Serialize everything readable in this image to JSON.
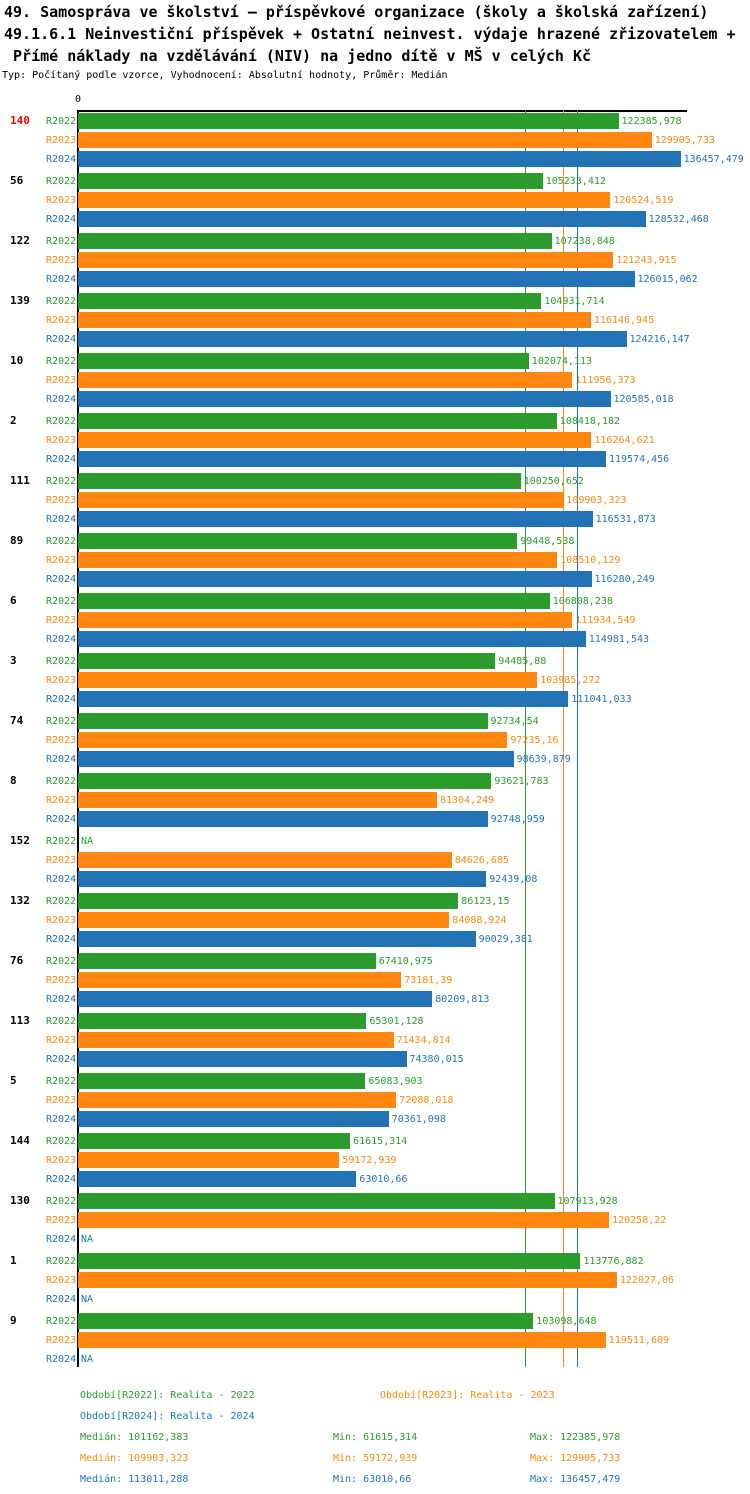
{
  "title": {
    "line1": "49. Samospráva ve školství – příspěvkové organizace (školy a školská zařízení)",
    "line2": "49.1.6.1 Neinvestiční příspěvek + Ostatní neinvest. výdaje hrazené zřizovatelem +",
    "line3": " Přímé náklady na vzdělávání (NIV) na jedno dítě v MŠ v celých Kč",
    "type_line": "Typ: Počítaný podle vzorce, Vyhodnocení: Absolutní hodnoty, Průměr: Medián"
  },
  "colors": {
    "r2022": "#2b9b2b",
    "r2023": "#ff870f",
    "r2024": "#2273b6",
    "highlight": "#ff0000",
    "axis": "#000000"
  },
  "chart_data": {
    "type": "bar",
    "orientation": "horizontal",
    "unit": "Kč",
    "x_axis": {
      "zero_label": "0",
      "x_max_estimate": 138000,
      "grid": false
    },
    "series_labels": [
      "R2022",
      "R2023",
      "R2024"
    ],
    "na_label": "NA",
    "medians": [
      101162.383,
      109903.323,
      113011.288
    ],
    "groups": [
      {
        "id": "140",
        "highlight": true,
        "bars": [
          {
            "value": 122385.978,
            "label": "122385,978"
          },
          {
            "value": 129905.733,
            "label": "129905,733"
          },
          {
            "value": 136457.479,
            "label": "136457,479"
          }
        ]
      },
      {
        "id": "56",
        "highlight": false,
        "bars": [
          {
            "value": 105233.412,
            "label": "105233,412"
          },
          {
            "value": 120524.519,
            "label": "120524,519"
          },
          {
            "value": 128532.468,
            "label": "128532,468"
          }
        ]
      },
      {
        "id": "122",
        "highlight": false,
        "bars": [
          {
            "value": 107238.848,
            "label": "107238,848"
          },
          {
            "value": 121243.915,
            "label": "121243,915"
          },
          {
            "value": 126015.062,
            "label": "126015,062"
          }
        ]
      },
      {
        "id": "139",
        "highlight": false,
        "bars": [
          {
            "value": 104931.714,
            "label": "104931,714"
          },
          {
            "value": 116146.945,
            "label": "116146,945"
          },
          {
            "value": 124216.147,
            "label": "124216,147"
          }
        ]
      },
      {
        "id": "10",
        "highlight": false,
        "bars": [
          {
            "value": 102074.113,
            "label": "102074,113"
          },
          {
            "value": 111956.373,
            "label": "111956,373"
          },
          {
            "value": 120585.018,
            "label": "120585,018"
          }
        ]
      },
      {
        "id": "2",
        "highlight": false,
        "bars": [
          {
            "value": 108418.182,
            "label": "108418,182"
          },
          {
            "value": 116264.621,
            "label": "116264,621"
          },
          {
            "value": 119574.456,
            "label": "119574,456"
          }
        ]
      },
      {
        "id": "111",
        "highlight": false,
        "bars": [
          {
            "value": 100250.652,
            "label": "100250,652"
          },
          {
            "value": 109903.323,
            "label": "109903,323"
          },
          {
            "value": 116531.873,
            "label": "116531,873"
          }
        ]
      },
      {
        "id": "89",
        "highlight": false,
        "bars": [
          {
            "value": 99448.538,
            "label": "99448,538"
          },
          {
            "value": 108510.129,
            "label": "108510,129"
          },
          {
            "value": 116280.249,
            "label": "116280,249"
          }
        ]
      },
      {
        "id": "6",
        "highlight": false,
        "bars": [
          {
            "value": 106808.238,
            "label": "106808,238"
          },
          {
            "value": 111934.549,
            "label": "111934,549"
          },
          {
            "value": 114981.543,
            "label": "114981,543"
          }
        ]
      },
      {
        "id": "3",
        "highlight": false,
        "bars": [
          {
            "value": 94485.88,
            "label": "94485,88"
          },
          {
            "value": 103985.272,
            "label": "103985,272"
          },
          {
            "value": 111041.033,
            "label": "111041,033"
          }
        ]
      },
      {
        "id": "74",
        "highlight": false,
        "bars": [
          {
            "value": 92734.54,
            "label": "92734,54"
          },
          {
            "value": 97235.16,
            "label": "97235,16"
          },
          {
            "value": 98639.879,
            "label": "98639,879"
          }
        ]
      },
      {
        "id": "8",
        "highlight": false,
        "bars": [
          {
            "value": 93621.783,
            "label": "93621,783"
          },
          {
            "value": 81304.249,
            "label": "81304,249"
          },
          {
            "value": 92748.959,
            "label": "92748,959"
          }
        ]
      },
      {
        "id": "152",
        "highlight": false,
        "bars": [
          {
            "value": null,
            "label": "NA"
          },
          {
            "value": 84626.685,
            "label": "84626,685"
          },
          {
            "value": 92439.08,
            "label": "92439,08"
          }
        ]
      },
      {
        "id": "132",
        "highlight": false,
        "bars": [
          {
            "value": 86123.15,
            "label": "86123,15"
          },
          {
            "value": 84088.924,
            "label": "84088,924"
          },
          {
            "value": 90029.381,
            "label": "90029,381"
          }
        ]
      },
      {
        "id": "76",
        "highlight": false,
        "bars": [
          {
            "value": 67410.975,
            "label": "67410,975"
          },
          {
            "value": 73181.39,
            "label": "73181,39"
          },
          {
            "value": 80209.813,
            "label": "80209,813"
          }
        ]
      },
      {
        "id": "113",
        "highlight": false,
        "bars": [
          {
            "value": 65301.128,
            "label": "65301,128"
          },
          {
            "value": 71434.814,
            "label": "71434,814"
          },
          {
            "value": 74380.015,
            "label": "74380,015"
          }
        ]
      },
      {
        "id": "5",
        "highlight": false,
        "bars": [
          {
            "value": 65083.903,
            "label": "65083,903"
          },
          {
            "value": 72088.018,
            "label": "72088,018"
          },
          {
            "value": 70361.098,
            "label": "70361,098"
          }
        ]
      },
      {
        "id": "144",
        "highlight": false,
        "bars": [
          {
            "value": 61615.314,
            "label": "61615,314"
          },
          {
            "value": 59172.939,
            "label": "59172,939"
          },
          {
            "value": 63010.66,
            "label": "63010,66"
          }
        ]
      },
      {
        "id": "130",
        "highlight": false,
        "bars": [
          {
            "value": 107913.928,
            "label": "107913,928"
          },
          {
            "value": 120258.22,
            "label": "120258,22"
          },
          {
            "value": null,
            "label": "NA"
          }
        ]
      },
      {
        "id": "1",
        "highlight": false,
        "bars": [
          {
            "value": 113776.882,
            "label": "113776,882"
          },
          {
            "value": 122027.06,
            "label": "122027,06"
          },
          {
            "value": null,
            "label": "NA"
          }
        ]
      },
      {
        "id": "9",
        "highlight": false,
        "bars": [
          {
            "value": 103098.648,
            "label": "103098,648"
          },
          {
            "value": 119511.609,
            "label": "119511,609"
          },
          {
            "value": null,
            "label": "NA"
          }
        ]
      }
    ]
  },
  "legend": {
    "periods": [
      {
        "label": "Období[R2022]: Realita - 2022"
      },
      {
        "label": "Období[R2023]: Realita - 2023"
      },
      {
        "label": "Období[R2024]: Realita - 2024"
      }
    ],
    "stats": [
      {
        "median": "Medián: 101162,383",
        "min": "Min: 61615,314",
        "max": "Max: 122385,978"
      },
      {
        "median": "Medián: 109903,323",
        "min": "Min: 59172,939",
        "max": "Max: 129905,733"
      },
      {
        "median": "Medián: 113011,288",
        "min": "Min: 63010,66",
        "max": "Max: 136457,479"
      }
    ]
  }
}
